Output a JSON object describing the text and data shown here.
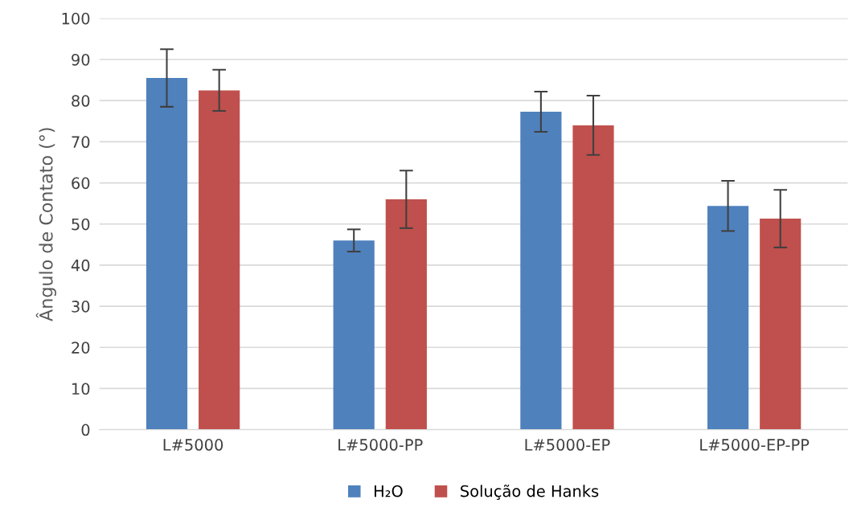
{
  "chart_data": {
    "type": "bar",
    "ylabel": "Ângulo de Contato (°)",
    "categories": [
      "L#5000",
      "L#5000-PP",
      "L#5000-EP",
      "L#5000-EP-PP"
    ],
    "series": [
      {
        "name": "H₂O",
        "color": "#4f81bd",
        "values": [
          85.5,
          46,
          77.3,
          54.4
        ],
        "errors": [
          7,
          2.7,
          4.9,
          6.1
        ]
      },
      {
        "name": "Solução de Hanks",
        "color": "#c0504d",
        "values": [
          82.5,
          56,
          74,
          51.3
        ],
        "errors": [
          5,
          7,
          7.2,
          7
        ]
      }
    ],
    "ylim": [
      0,
      100
    ],
    "yticks": [
      0,
      10,
      20,
      30,
      40,
      50,
      60,
      70,
      80,
      90,
      100
    ],
    "grid": "y",
    "legend": "bottom"
  }
}
